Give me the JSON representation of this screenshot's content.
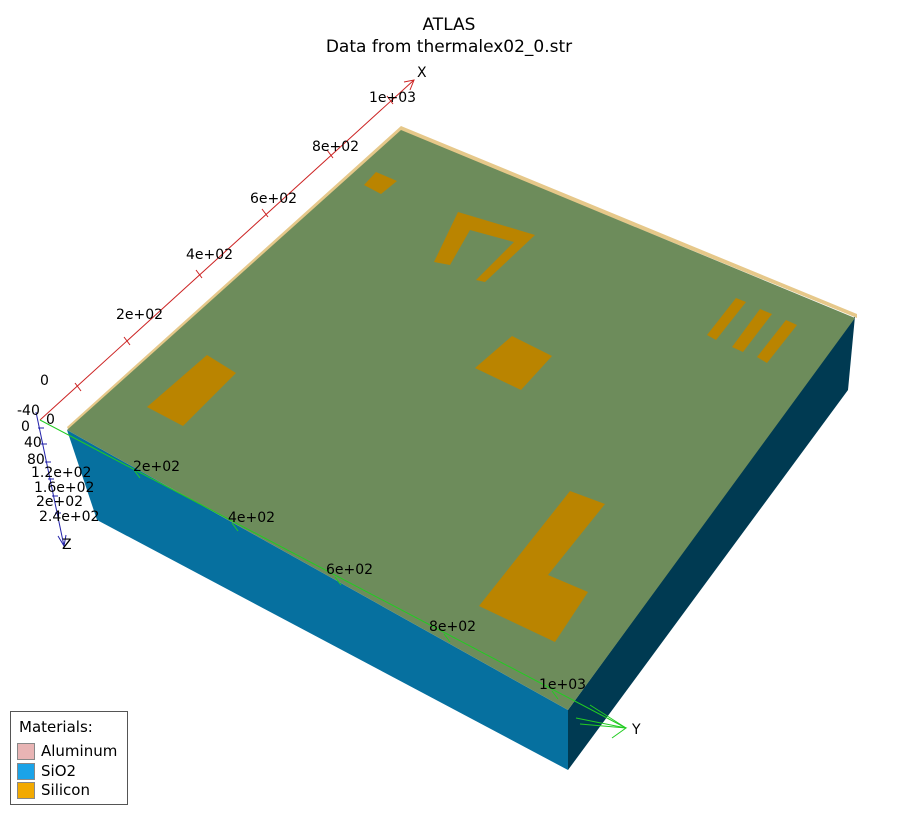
{
  "header": {
    "title": "ATLAS",
    "subtitle": "Data from thermalex02_0.str"
  },
  "axes": {
    "x": {
      "label": "X",
      "ticks": [
        "0",
        "2e+02",
        "4e+02",
        "6e+02",
        "8e+02",
        "1e+03"
      ],
      "color": "#cc2222"
    },
    "y": {
      "label": "Y",
      "ticks": [
        "0",
        "2e+02",
        "4e+02",
        "6e+02",
        "8e+02",
        "1e+03"
      ],
      "color": "#22cc22"
    },
    "z": {
      "label": "Z",
      "ticks": [
        "-40",
        "0",
        "40",
        "80",
        "1.2e+02",
        "1.6e+02",
        "2e+02",
        "2.4e+02"
      ],
      "color": "#2222aa"
    }
  },
  "legend": {
    "title": "Materials:",
    "items": [
      {
        "label": "Aluminum",
        "color": "#e8b4b4"
      },
      {
        "label": "SiO2",
        "color": "#1aa3e8"
      },
      {
        "label": "Silicon",
        "color": "#f2a900"
      }
    ]
  },
  "colors": {
    "top_face": "#6d8c5b",
    "front_face": "#06709f",
    "right_face": "#003a52",
    "pads": "#ba8400",
    "top_edge": "#e6c88a"
  }
}
